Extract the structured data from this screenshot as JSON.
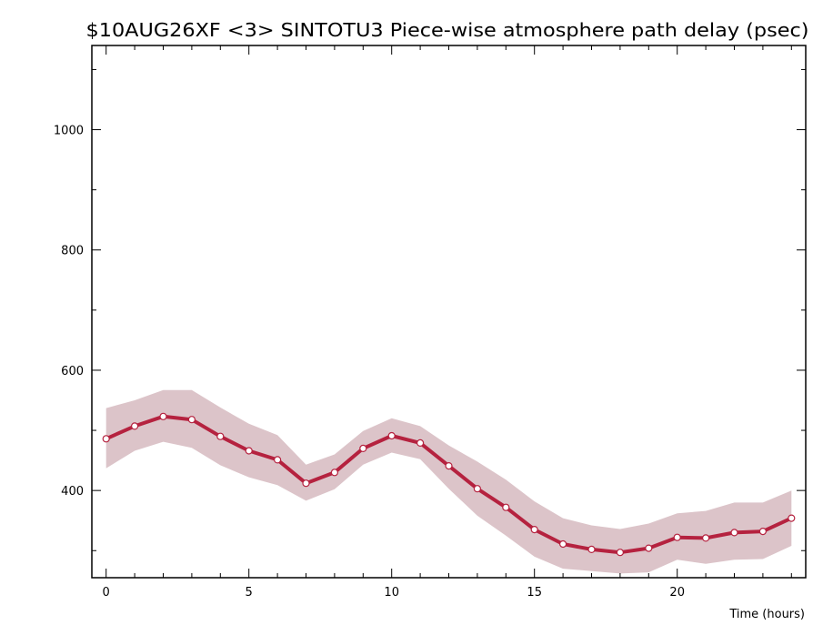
{
  "chart_data": {
    "type": "line",
    "title": "$10AUG26XF <3>   SINTOTU3   Piece-wise atmosphere path delay (psec)",
    "xlabel": "Time (hours)",
    "ylabel": "",
    "xlim": [
      -0.5,
      24.5
    ],
    "ylim": [
      255,
      1140
    ],
    "x_ticks": [
      0,
      5,
      10,
      15,
      20
    ],
    "y_ticks": [
      400,
      600,
      800,
      1000
    ],
    "grid": false,
    "x": [
      0,
      1,
      2,
      3,
      4,
      5,
      6,
      7,
      8,
      9,
      10,
      11,
      12,
      13,
      14,
      15,
      16,
      17,
      18,
      19,
      20,
      21,
      22,
      23,
      24
    ],
    "series": [
      {
        "values": [
          486,
          507,
          523,
          518,
          490,
          466,
          451,
          412,
          430,
          470,
          491,
          479,
          441,
          403,
          372,
          335,
          311,
          302,
          297,
          304,
          322,
          321,
          330,
          332,
          354
        ],
        "band_upper": [
          537,
          550,
          567,
          567,
          538,
          511,
          492,
          443,
          460,
          499,
          520,
          507,
          475,
          448,
          418,
          382,
          354,
          342,
          336,
          345,
          362,
          366,
          380,
          380,
          400
        ],
        "band_lower": [
          437,
          466,
          481,
          471,
          442,
          422,
          409,
          383,
          402,
          443,
          463,
          452,
          403,
          358,
          325,
          290,
          270,
          266,
          262,
          264,
          285,
          278,
          285,
          286,
          308
        ]
      }
    ],
    "colors": {
      "line": "#b5223f",
      "band": "#dcc4c9",
      "marker_fill": "#ffffff"
    }
  }
}
